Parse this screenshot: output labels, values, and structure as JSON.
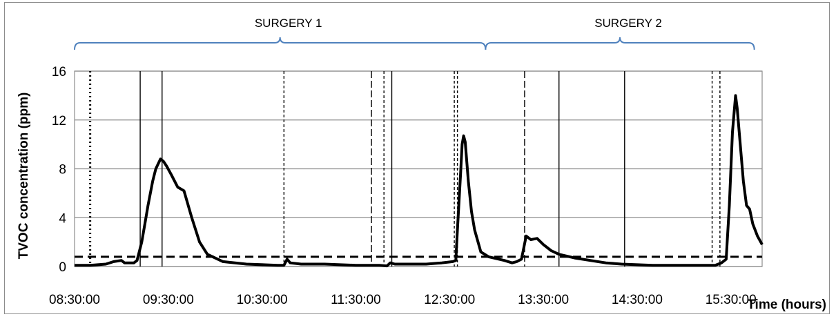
{
  "chart_data": {
    "type": "line",
    "ylabel": "TVOC concentration (ppm)",
    "xlabel": "Time (hours)",
    "xlim": [
      "08:30:00",
      "15:50:00"
    ],
    "ylim": [
      0,
      16
    ],
    "yticks": [
      0,
      4,
      8,
      12,
      16
    ],
    "xticks": [
      "08:30:00",
      "09:30:00",
      "10:30:00",
      "11:30:00",
      "12:30:00",
      "13:30:00",
      "14:30:00",
      "15:30:00"
    ],
    "grid": "horizontal",
    "legend": "none",
    "brackets": [
      {
        "label": "SURGERY 1",
        "start": "08:30:00",
        "end": "12:53:00"
      },
      {
        "label": "SURGERY 2",
        "start": "12:53:00",
        "end": "15:45:00"
      }
    ],
    "threshold": {
      "y": 0.8,
      "style": "dashed"
    },
    "event_lines": [
      {
        "time": "08:40:00",
        "style": "dotted"
      },
      {
        "time": "09:12:00",
        "style": "solid"
      },
      {
        "time": "09:26:00",
        "style": "solid"
      },
      {
        "time": "10:44:00",
        "style": "short-dash"
      },
      {
        "time": "11:40:00",
        "style": "long-dash"
      },
      {
        "time": "11:48:00",
        "style": "short-dash"
      },
      {
        "time": "11:53:00",
        "style": "solid"
      },
      {
        "time": "12:33:00",
        "style": "short-dash"
      },
      {
        "time": "12:35:00",
        "style": "short-dash"
      },
      {
        "time": "13:18:00",
        "style": "long-dash"
      },
      {
        "time": "13:40:00",
        "style": "solid"
      },
      {
        "time": "14:22:00",
        "style": "solid"
      },
      {
        "time": "15:18:00",
        "style": "short-dash"
      },
      {
        "time": "15:23:00",
        "style": "short-dash"
      }
    ],
    "series": [
      {
        "color": "#000000",
        "x": [
          "08:30:00",
          "08:40:00",
          "08:50:00",
          "08:55:00",
          "09:00:00",
          "09:02:00",
          "09:05:00",
          "09:08:00",
          "09:10:00",
          "09:13:00",
          "09:15:00",
          "09:17:00",
          "09:20:00",
          "09:22:00",
          "09:25:00",
          "09:27:00",
          "09:29:00",
          "09:32:00",
          "09:36:00",
          "09:40:00",
          "09:45:00",
          "09:50:00",
          "09:55:00",
          "10:05:00",
          "10:20:00",
          "10:40:00",
          "10:44:00",
          "10:46:00",
          "10:48:00",
          "10:55:00",
          "11:10:00",
          "11:30:00",
          "11:45:00",
          "11:50:00",
          "11:52:00",
          "11:55:00",
          "12:05:00",
          "12:15:00",
          "12:25:00",
          "12:32:00",
          "12:34:00",
          "12:35:00",
          "12:37:00",
          "12:38:00",
          "12:39:00",
          "12:40:00",
          "12:42:00",
          "12:44:00",
          "12:46:00",
          "12:50:00",
          "12:55:00",
          "13:05:00",
          "13:10:00",
          "13:13:00",
          "13:16:00",
          "13:19:00",
          "13:22:00",
          "13:26:00",
          "13:30:00",
          "13:35:00",
          "13:40:00",
          "13:50:00",
          "14:00:00",
          "14:10:00",
          "14:20:00",
          "14:40:00",
          "15:00:00",
          "15:20:00",
          "15:24:00",
          "15:27:00",
          "15:29:00",
          "15:31:00",
          "15:33:00",
          "15:34:00",
          "15:36:00",
          "15:38:00",
          "15:40:00",
          "15:42:00",
          "15:44:00",
          "15:47:00",
          "15:50:00"
        ],
        "y": [
          0.1,
          0.1,
          0.2,
          0.4,
          0.5,
          0.3,
          0.3,
          0.3,
          0.5,
          2.0,
          3.5,
          5.0,
          7.0,
          8.0,
          8.8,
          8.6,
          8.2,
          7.5,
          6.5,
          6.2,
          4.0,
          2.0,
          1.0,
          0.4,
          0.2,
          0.1,
          0.1,
          0.6,
          0.3,
          0.2,
          0.2,
          0.1,
          0.1,
          0.05,
          0.3,
          0.2,
          0.2,
          0.2,
          0.3,
          0.4,
          0.5,
          3.0,
          7.5,
          10.0,
          10.7,
          10.2,
          7.0,
          4.5,
          3.0,
          1.2,
          0.8,
          0.5,
          0.3,
          0.4,
          0.6,
          2.5,
          2.2,
          2.3,
          1.8,
          1.3,
          1.0,
          0.7,
          0.5,
          0.3,
          0.2,
          0.1,
          0.1,
          0.1,
          0.3,
          0.6,
          5.0,
          11.0,
          14.0,
          13.0,
          10.0,
          7.0,
          5.0,
          4.7,
          3.5,
          2.5,
          1.8
        ]
      }
    ]
  }
}
